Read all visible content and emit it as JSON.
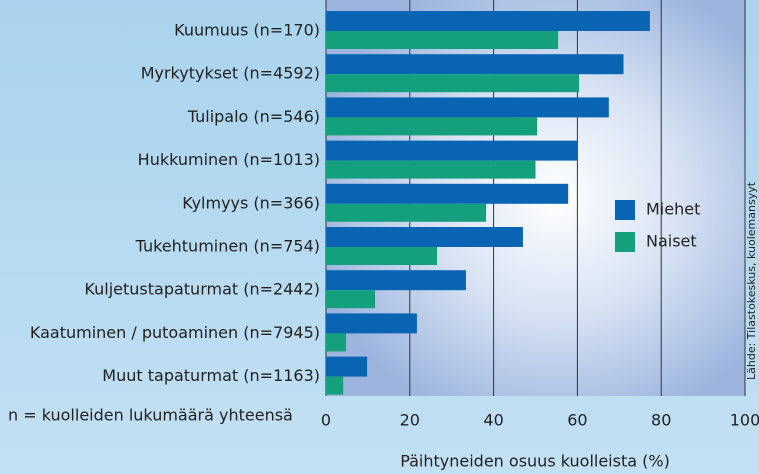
{
  "chart_data": {
    "type": "barh",
    "categories": [
      "Kuumuus (n=170)",
      "Myrkytykset (n=4592)",
      "Tulipalo (n=546)",
      "Hukkuminen (n=1013)",
      "Kylmyys (n=366)",
      "Tukehtuminen (n=754)",
      "Kuljetustapaturmat (n=2442)",
      "Kaatuminen / putoaminen (n=7945)",
      "Muut tapaturmat (n=1163)"
    ],
    "series": [
      {
        "name": "Miehet",
        "color": "#0a64b4",
        "values": [
          77.3,
          71,
          67.5,
          60,
          57.8,
          47,
          33.4,
          21.7,
          9.8
        ]
      },
      {
        "name": "Naiset",
        "color": "#14a07c",
        "values": [
          55.4,
          60.4,
          50.4,
          50,
          38.2,
          26.5,
          11.7,
          4.8,
          4.1
        ]
      }
    ],
    "xlim": [
      0,
      100
    ],
    "xticks": [
      0,
      20,
      40,
      60,
      80,
      100
    ],
    "grid": true,
    "xlabel": "Päihtyneiden osuus kuolleista (%)",
    "note": "n = kuolleiden lukumäärä yhteensä",
    "source": "Lähde: Tilastokeskus, kuolemansyyt"
  }
}
